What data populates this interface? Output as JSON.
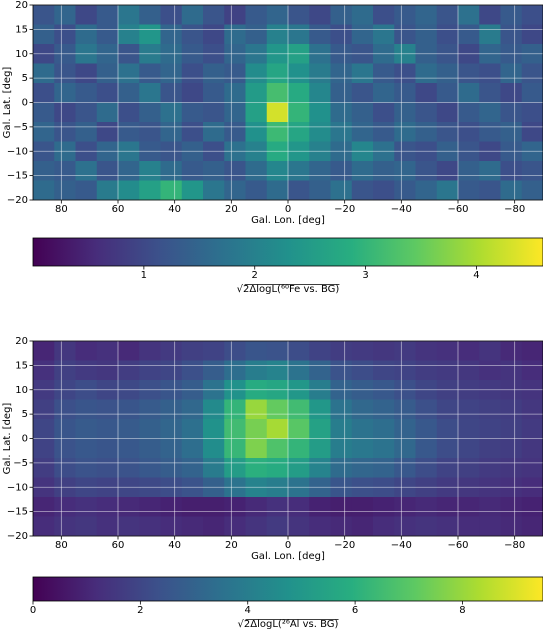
{
  "chart_data": [
    {
      "type": "heatmap",
      "xlabel": "Gal. Lon. [deg]",
      "ylabel": "Gal. Lat. [deg]",
      "xlim": [
        90,
        -90
      ],
      "ylim": [
        -20,
        20
      ],
      "grid": true,
      "colormap": "viridis",
      "xticks": [
        80,
        60,
        40,
        20,
        0,
        {
          "value": -20,
          "label": "−20"
        },
        {
          "value": -40,
          "label": "−40"
        },
        {
          "value": -60,
          "label": "−60"
        },
        {
          "value": -80,
          "label": "−80"
        }
      ],
      "yticks": [
        {
          "value": -20,
          "label": "−20"
        },
        {
          "value": -15,
          "label": "−15"
        },
        {
          "value": -10,
          "label": "−10"
        },
        {
          "value": -5,
          "label": "−5"
        },
        0,
        5,
        10,
        15,
        20
      ],
      "xbins": [
        90,
        82.5,
        75,
        67.5,
        60,
        52.5,
        45,
        37.5,
        30,
        22.5,
        15,
        7.5,
        0,
        -7.5,
        -15,
        -22.5,
        -30,
        -37.5,
        -45,
        -52.5,
        -60,
        -67.5,
        -75,
        -82.5,
        -90
      ],
      "ybins": [
        20,
        16,
        12,
        8,
        4,
        0,
        -4,
        -8,
        -12,
        -16,
        -20
      ],
      "values": [
        [
          1.2,
          1.5,
          1.0,
          1.3,
          1.8,
          1.4,
          1.1,
          1.6,
          1.2,
          0.9,
          1.3,
          1.5,
          1.2,
          1.0,
          1.4,
          1.6,
          1.1,
          1.3,
          1.5,
          1.2,
          1.7,
          1.0,
          1.3,
          1.1
        ],
        [
          1.4,
          1.1,
          1.6,
          1.3,
          2.0,
          2.4,
          1.5,
          1.2,
          1.0,
          1.6,
          1.4,
          2.0,
          1.8,
          1.3,
          1.1,
          1.5,
          1.8,
          1.2,
          1.4,
          1.1,
          1.3,
          1.9,
          1.2,
          1.0
        ],
        [
          1.0,
          1.3,
          1.8,
          1.5,
          1.2,
          1.9,
          1.6,
          1.3,
          1.1,
          1.5,
          1.8,
          2.4,
          2.6,
          1.7,
          1.3,
          1.2,
          1.6,
          2.0,
          1.4,
          1.2,
          1.0,
          1.5,
          1.3,
          1.4
        ],
        [
          1.6,
          1.2,
          1.0,
          1.4,
          1.7,
          1.3,
          1.5,
          1.1,
          1.4,
          1.3,
          2.2,
          2.7,
          2.3,
          1.9,
          1.5,
          1.8,
          1.3,
          1.1,
          1.6,
          1.4,
          1.2,
          1.1,
          1.5,
          1.2
        ],
        [
          1.1,
          1.5,
          1.3,
          1.1,
          1.4,
          1.8,
          1.2,
          1.0,
          1.3,
          1.6,
          2.5,
          3.2,
          2.8,
          2.1,
          1.4,
          1.2,
          1.5,
          1.3,
          1.0,
          1.3,
          1.6,
          1.2,
          1.0,
          1.3
        ],
        [
          1.3,
          1.0,
          1.2,
          1.6,
          1.1,
          1.4,
          1.7,
          1.3,
          1.2,
          1.5,
          2.6,
          4.3,
          3.0,
          2.3,
          1.6,
          1.4,
          1.1,
          1.4,
          1.2,
          1.0,
          1.3,
          1.5,
          1.2,
          1.1
        ],
        [
          1.5,
          1.2,
          1.4,
          1.0,
          1.3,
          1.2,
          1.5,
          1.1,
          1.6,
          1.3,
          2.3,
          3.1,
          2.7,
          2.2,
          1.8,
          1.5,
          1.3,
          1.6,
          1.4,
          1.2,
          1.1,
          1.3,
          1.4,
          1.0
        ],
        [
          1.2,
          1.6,
          1.1,
          1.5,
          1.8,
          1.3,
          1.2,
          1.4,
          1.1,
          1.7,
          2.0,
          2.8,
          2.4,
          2.0,
          1.6,
          2.1,
          1.7,
          1.2,
          1.1,
          1.4,
          1.2,
          1.0,
          1.3,
          1.5
        ],
        [
          1.4,
          1.3,
          1.7,
          1.2,
          1.5,
          2.0,
          1.6,
          1.3,
          1.4,
          1.2,
          1.6,
          2.1,
          1.8,
          1.5,
          1.3,
          1.6,
          1.4,
          1.5,
          1.2,
          1.0,
          1.4,
          1.6,
          1.1,
          1.2
        ],
        [
          1.6,
          1.4,
          1.3,
          1.9,
          2.2,
          2.6,
          3.0,
          2.4,
          1.8,
          1.5,
          1.3,
          1.6,
          1.2,
          1.4,
          1.7,
          1.2,
          1.1,
          1.3,
          1.5,
          1.8,
          1.3,
          1.2,
          1.6,
          1.4
        ]
      ],
      "colorbar": {
        "label": "√2ΔlogL(⁶⁰Fe vs. BG)",
        "lim": [
          0,
          4.6
        ],
        "ticks": [
          1,
          2,
          3,
          4
        ]
      }
    },
    {
      "type": "heatmap",
      "xlabel": "Gal. Lon. [deg]",
      "ylabel": "Gal. Lat. [deg]",
      "xlim": [
        90,
        -90
      ],
      "ylim": [
        -20,
        20
      ],
      "grid": true,
      "colormap": "viridis",
      "xticks": [
        80,
        60,
        40,
        20,
        0,
        {
          "value": -20,
          "label": "−20"
        },
        {
          "value": -40,
          "label": "−40"
        },
        {
          "value": -60,
          "label": "−60"
        },
        {
          "value": -80,
          "label": "−80"
        }
      ],
      "yticks": [
        {
          "value": -20,
          "label": "−20"
        },
        {
          "value": -15,
          "label": "−15"
        },
        {
          "value": -10,
          "label": "−10"
        },
        {
          "value": -5,
          "label": "−5"
        },
        0,
        5,
        10,
        15,
        20
      ],
      "xbins": [
        90,
        82.5,
        75,
        67.5,
        60,
        52.5,
        45,
        37.5,
        30,
        22.5,
        15,
        7.5,
        0,
        -7.5,
        -15,
        -22.5,
        -30,
        -37.5,
        -45,
        -52.5,
        -60,
        -67.5,
        -75,
        -82.5,
        -90
      ],
      "ybins": [
        20,
        16,
        12,
        8,
        4,
        0,
        -4,
        -8,
        -12,
        -16,
        -20
      ],
      "values": [
        [
          1.0,
          1.5,
          1.2,
          1.3,
          1.1,
          1.4,
          1.6,
          1.8,
          1.9,
          2.2,
          2.5,
          2.4,
          2.2,
          1.9,
          1.7,
          1.6,
          1.5,
          1.6,
          1.4,
          1.3,
          1.2,
          1.4,
          1.1,
          1.0
        ],
        [
          1.3,
          1.8,
          1.6,
          1.5,
          1.7,
          1.9,
          2.0,
          2.3,
          2.8,
          3.4,
          4.0,
          4.2,
          3.6,
          3.0,
          2.4,
          2.2,
          2.0,
          1.9,
          1.7,
          1.6,
          1.5,
          1.3,
          1.4,
          1.2
        ],
        [
          1.6,
          2.0,
          2.2,
          2.0,
          2.1,
          2.3,
          2.5,
          2.8,
          3.6,
          4.8,
          5.8,
          5.6,
          5.0,
          4.0,
          3.0,
          2.8,
          2.6,
          2.3,
          2.0,
          1.8,
          1.7,
          1.6,
          1.5,
          1.4
        ],
        [
          1.8,
          2.3,
          2.5,
          2.4,
          2.5,
          2.7,
          2.9,
          3.2,
          4.5,
          6.2,
          8.0,
          7.2,
          6.5,
          5.0,
          3.6,
          3.2,
          3.0,
          2.7,
          2.3,
          2.0,
          1.9,
          1.8,
          1.7,
          1.5
        ],
        [
          2.0,
          2.5,
          2.7,
          2.6,
          2.7,
          2.9,
          3.1,
          3.5,
          4.8,
          6.5,
          7.5,
          8.2,
          7.0,
          5.4,
          4.0,
          3.6,
          3.4,
          3.0,
          2.6,
          2.2,
          2.0,
          1.9,
          1.8,
          1.6
        ],
        [
          1.9,
          2.4,
          2.6,
          2.5,
          2.6,
          2.8,
          3.0,
          3.4,
          4.6,
          6.3,
          7.6,
          6.8,
          6.2,
          5.2,
          4.0,
          3.8,
          3.6,
          3.2,
          2.6,
          2.2,
          2.0,
          1.8,
          1.7,
          1.5
        ],
        [
          1.7,
          2.2,
          2.4,
          2.3,
          2.4,
          2.6,
          2.8,
          3.0,
          3.9,
          5.2,
          6.0,
          5.8,
          5.2,
          4.2,
          3.3,
          3.1,
          3.0,
          2.6,
          2.2,
          1.9,
          1.8,
          1.6,
          1.5,
          1.4
        ],
        [
          1.4,
          1.8,
          2.0,
          1.9,
          2.0,
          2.1,
          2.2,
          2.4,
          2.9,
          3.6,
          4.2,
          4.0,
          3.6,
          3.0,
          2.5,
          2.3,
          2.2,
          2.0,
          1.8,
          1.6,
          1.5,
          1.4,
          1.3,
          1.2
        ],
        [
          1.0,
          1.2,
          1.3,
          1.2,
          1.1,
          1.0,
          0.9,
          0.8,
          0.8,
          0.9,
          1.1,
          1.3,
          1.2,
          0.9,
          0.8,
          0.8,
          0.9,
          1.0,
          1.1,
          1.0,
          1.0,
          1.1,
          1.0,
          0.9
        ],
        [
          1.2,
          1.4,
          1.5,
          1.3,
          1.4,
          1.3,
          1.2,
          1.1,
          1.0,
          1.2,
          1.4,
          1.6,
          1.4,
          1.2,
          1.1,
          1.0,
          1.2,
          1.3,
          1.4,
          1.3,
          1.2,
          1.2,
          1.1,
          1.0
        ]
      ],
      "colorbar": {
        "label": "√2ΔlogL(²⁶Al vs. BG)",
        "lim": [
          0,
          9.5
        ],
        "ticks": [
          0,
          2,
          4,
          6,
          8
        ]
      }
    }
  ]
}
